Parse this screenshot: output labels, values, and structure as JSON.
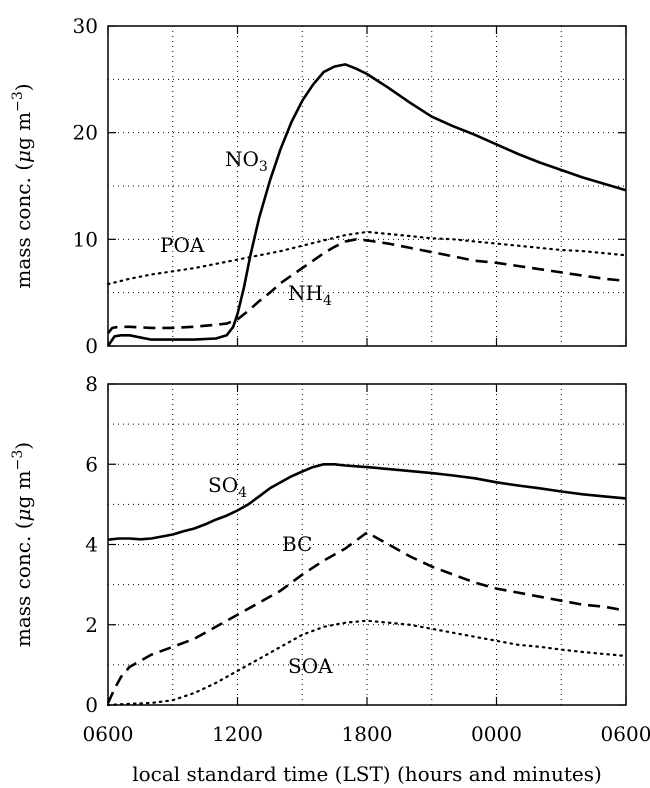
{
  "chart_data": [
    {
      "type": "line",
      "ylabel": "mass conc. (μg m⁻³)",
      "ylabel_parts": {
        "main": "mass conc. (",
        "mu": "μ",
        "unit": "g m",
        "exp": "−3",
        "close": ")"
      },
      "xlim": [
        0,
        24
      ],
      "ylim": [
        0,
        30
      ],
      "yticks": [
        0,
        10,
        20,
        30
      ],
      "grid": true,
      "series": [
        {
          "name": "NO3",
          "label_main": "NO",
          "label_sub": "3",
          "style": "solid",
          "x": [
            0,
            0.1,
            0.3,
            0.6,
            1,
            2,
            3,
            4,
            5,
            5.5,
            5.8,
            6,
            6.3,
            6.6,
            7,
            7.5,
            8,
            8.5,
            9,
            9.5,
            10,
            10.5,
            11,
            11.5,
            12,
            13,
            14,
            15,
            16,
            17,
            18,
            19,
            20,
            21,
            22,
            23,
            24
          ],
          "y": [
            0,
            0.3,
            0.9,
            1.0,
            1.0,
            0.6,
            0.6,
            0.6,
            0.7,
            1.0,
            1.8,
            3.0,
            5.5,
            8.5,
            12.0,
            15.5,
            18.5,
            21.0,
            23.0,
            24.5,
            25.7,
            26.2,
            26.4,
            26.0,
            25.5,
            24.2,
            22.8,
            21.5,
            20.6,
            19.8,
            18.9,
            18.0,
            17.2,
            16.5,
            15.8,
            15.2,
            14.6
          ]
        },
        {
          "name": "NH4",
          "label_main": "NH",
          "label_sub": "4",
          "style": "dashed",
          "x": [
            0,
            0.2,
            0.5,
            1,
            2,
            3,
            4,
            5,
            5.5,
            6,
            6.5,
            7,
            7.5,
            8,
            8.5,
            9,
            9.5,
            10,
            10.5,
            11,
            11.5,
            12,
            13,
            14,
            15,
            16,
            17,
            18,
            19,
            20,
            21,
            22,
            23,
            24
          ],
          "y": [
            1.2,
            1.7,
            1.8,
            1.8,
            1.7,
            1.7,
            1.8,
            2.0,
            2.1,
            2.5,
            3.3,
            4.2,
            5.0,
            5.9,
            6.6,
            7.3,
            8.0,
            8.7,
            9.3,
            9.8,
            10.0,
            9.9,
            9.6,
            9.2,
            8.8,
            8.4,
            8.0,
            7.8,
            7.5,
            7.2,
            6.9,
            6.6,
            6.3,
            6.1
          ]
        },
        {
          "name": "POA",
          "label_main": "POA",
          "style": "dotted",
          "x": [
            0,
            1,
            2,
            3,
            4,
            5,
            6,
            7,
            8,
            9,
            10,
            11,
            12,
            13,
            14,
            15,
            16,
            17,
            18,
            19,
            20,
            21,
            22,
            23,
            24
          ],
          "y": [
            5.8,
            6.3,
            6.7,
            7.0,
            7.3,
            7.7,
            8.1,
            8.5,
            8.9,
            9.4,
            9.9,
            10.4,
            10.7,
            10.5,
            10.3,
            10.1,
            10.0,
            9.8,
            9.6,
            9.4,
            9.2,
            9.0,
            8.9,
            8.7,
            8.5
          ]
        }
      ]
    },
    {
      "type": "line",
      "ylabel": "mass conc. (μg m⁻³)",
      "ylabel_parts": {
        "main": "mass conc. (",
        "mu": "μ",
        "unit": "g m",
        "exp": "−3",
        "close": ")"
      },
      "xlabel": "local standard time (LST) (hours and minutes)",
      "xlim": [
        0,
        24
      ],
      "xticks": [
        "0600",
        "1200",
        "1800",
        "0000",
        "0600"
      ],
      "ylim": [
        0,
        8
      ],
      "yticks": [
        0,
        2,
        4,
        6,
        8
      ],
      "grid": true,
      "series": [
        {
          "name": "SO4",
          "label_main": "SO",
          "label_sub": "4",
          "style": "solid",
          "x": [
            0,
            0.5,
            1,
            1.5,
            2,
            2.5,
            3,
            3.5,
            4,
            4.5,
            5,
            5.5,
            6,
            6.5,
            7,
            7.5,
            8,
            8.5,
            9,
            9.5,
            10,
            10.5,
            11,
            11.5,
            12,
            13,
            14,
            15,
            16,
            17,
            18,
            19,
            20,
            21,
            22,
            23,
            24
          ],
          "y": [
            4.12,
            4.15,
            4.15,
            4.13,
            4.15,
            4.2,
            4.25,
            4.33,
            4.4,
            4.5,
            4.62,
            4.72,
            4.85,
            5.0,
            5.2,
            5.4,
            5.55,
            5.7,
            5.82,
            5.93,
            6.0,
            6.0,
            5.97,
            5.95,
            5.93,
            5.88,
            5.83,
            5.78,
            5.72,
            5.65,
            5.55,
            5.47,
            5.4,
            5.32,
            5.25,
            5.2,
            5.15
          ]
        },
        {
          "name": "BC",
          "label_main": "BC",
          "style": "dashed",
          "x": [
            0,
            0.3,
            0.6,
            1,
            1.5,
            2,
            3,
            4,
            5,
            6,
            7,
            8,
            9,
            10,
            11,
            12,
            13,
            14,
            15,
            16,
            17,
            18,
            19,
            20,
            21,
            22,
            23,
            24
          ],
          "y": [
            0.05,
            0.4,
            0.7,
            0.95,
            1.1,
            1.25,
            1.45,
            1.65,
            1.95,
            2.25,
            2.55,
            2.85,
            3.25,
            3.6,
            3.9,
            4.3,
            4.0,
            3.7,
            3.45,
            3.25,
            3.05,
            2.9,
            2.8,
            2.7,
            2.6,
            2.5,
            2.45,
            2.35
          ]
        },
        {
          "name": "SOA",
          "label_main": "SOA",
          "style": "dotted",
          "x": [
            0,
            1,
            2,
            3,
            4,
            5,
            6,
            7,
            8,
            9,
            10,
            11,
            12,
            13,
            14,
            15,
            16,
            17,
            18,
            19,
            20,
            21,
            22,
            23,
            24
          ],
          "y": [
            0.0,
            0.03,
            0.05,
            0.12,
            0.3,
            0.55,
            0.85,
            1.15,
            1.45,
            1.75,
            1.95,
            2.05,
            2.1,
            2.05,
            2.0,
            1.9,
            1.8,
            1.7,
            1.6,
            1.5,
            1.45,
            1.38,
            1.32,
            1.27,
            1.22
          ]
        }
      ]
    }
  ]
}
